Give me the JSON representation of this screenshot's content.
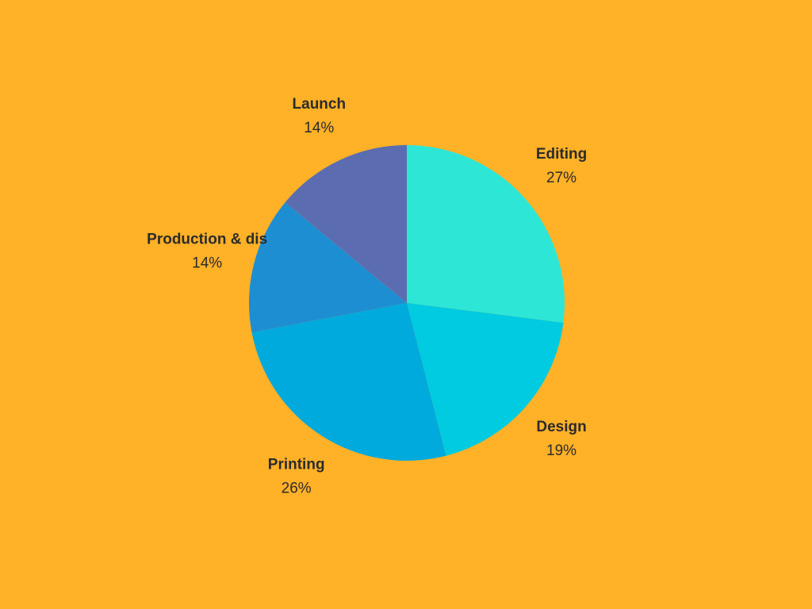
{
  "chart_data": {
    "type": "pie",
    "categories": [
      "Editing",
      "Design",
      "Printing",
      "Production & dis",
      "Launch"
    ],
    "values": [
      27,
      19,
      26,
      14,
      14
    ],
    "value_labels": [
      "27%",
      "19%",
      "26%",
      "14%",
      "14%"
    ],
    "colors": [
      "#2ee6d6",
      "#00cbe0",
      "#00aadd",
      "#1e8ed2",
      "#5b6db0"
    ]
  }
}
